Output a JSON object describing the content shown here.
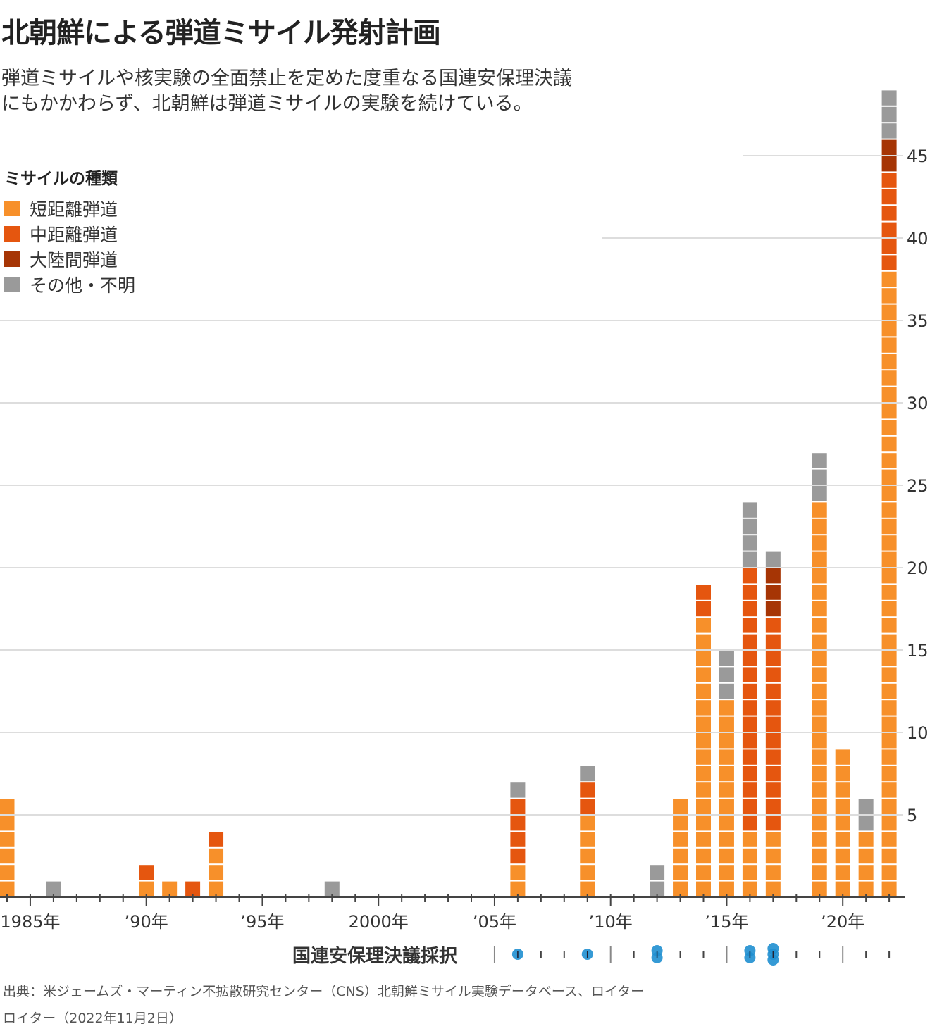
{
  "title": "北朝鮮による弾道ミサイル発射計画",
  "subtitle": "弾道ミサイルや核実験の全面禁止を定めた度重なる国連安保理決議にもかかわらず、北朝鮮は弾道ミサイルの実験を続けている。",
  "legend": {
    "title": "ミサイルの種類",
    "items": [
      {
        "label": "短距離弾道",
        "color": "#f7902a"
      },
      {
        "label": "中距離弾道",
        "color": "#e5560f"
      },
      {
        "label": "大陸間弾道",
        "color": "#a63505"
      },
      {
        "label": "その他・不明",
        "color": "#9a9a9a"
      }
    ]
  },
  "resolutions_label": "国連安保理決議採択",
  "source": "出典：米ジェームズ・マーティン不拡散研究センター（CNS）北朝鮮ミサイル実験データベース、ロイター",
  "credit": "ロイター（2022年11月2日）",
  "chart_data": {
    "type": "bar",
    "stacked": true,
    "title": "北朝鮮による弾道ミサイル発射計画",
    "ylim": [
      0,
      50
    ],
    "y_ticks": [
      5,
      10,
      15,
      20,
      25,
      30,
      35,
      40,
      45
    ],
    "x_tick_labels": [
      {
        "year": 1985,
        "label": "1985年"
      },
      {
        "year": 1990,
        "label": "’90年"
      },
      {
        "year": 1995,
        "label": "’95年"
      },
      {
        "year": 2000,
        "label": "2000年"
      },
      {
        "year": 2005,
        "label": "’05年"
      },
      {
        "year": 2010,
        "label": "’10年"
      },
      {
        "year": 2015,
        "label": "’15年"
      },
      {
        "year": 2020,
        "label": "’20年"
      }
    ],
    "x_range": [
      1984,
      2022
    ],
    "categories": [
      1984,
      1986,
      1990,
      1991,
      1992,
      1993,
      1998,
      2006,
      2009,
      2012,
      2013,
      2014,
      2015,
      2016,
      2017,
      2019,
      2020,
      2021,
      2022
    ],
    "series": [
      {
        "name": "短距離弾道",
        "values": [
          6,
          0,
          1,
          1,
          0,
          3,
          0,
          2,
          5,
          0,
          6,
          17,
          12,
          4,
          4,
          24,
          9,
          4,
          38
        ]
      },
      {
        "name": "中距離弾道",
        "values": [
          0,
          0,
          1,
          0,
          1,
          1,
          0,
          4,
          2,
          0,
          0,
          2,
          0,
          16,
          13,
          0,
          0,
          0,
          6
        ]
      },
      {
        "name": "大陸間弾道",
        "values": [
          0,
          0,
          0,
          0,
          0,
          0,
          0,
          0,
          0,
          0,
          0,
          0,
          0,
          0,
          3,
          0,
          0,
          0,
          2
        ]
      },
      {
        "name": "その他・不明",
        "values": [
          0,
          1,
          0,
          0,
          0,
          0,
          1,
          1,
          1,
          2,
          0,
          0,
          3,
          4,
          1,
          3,
          0,
          2,
          3
        ]
      }
    ],
    "un_resolutions": [
      {
        "year": 2006,
        "count": 1
      },
      {
        "year": 2009,
        "count": 1
      },
      {
        "year": 2012,
        "count": 2
      },
      {
        "year": 2016,
        "count": 2
      },
      {
        "year": 2017,
        "count": 3
      }
    ]
  }
}
